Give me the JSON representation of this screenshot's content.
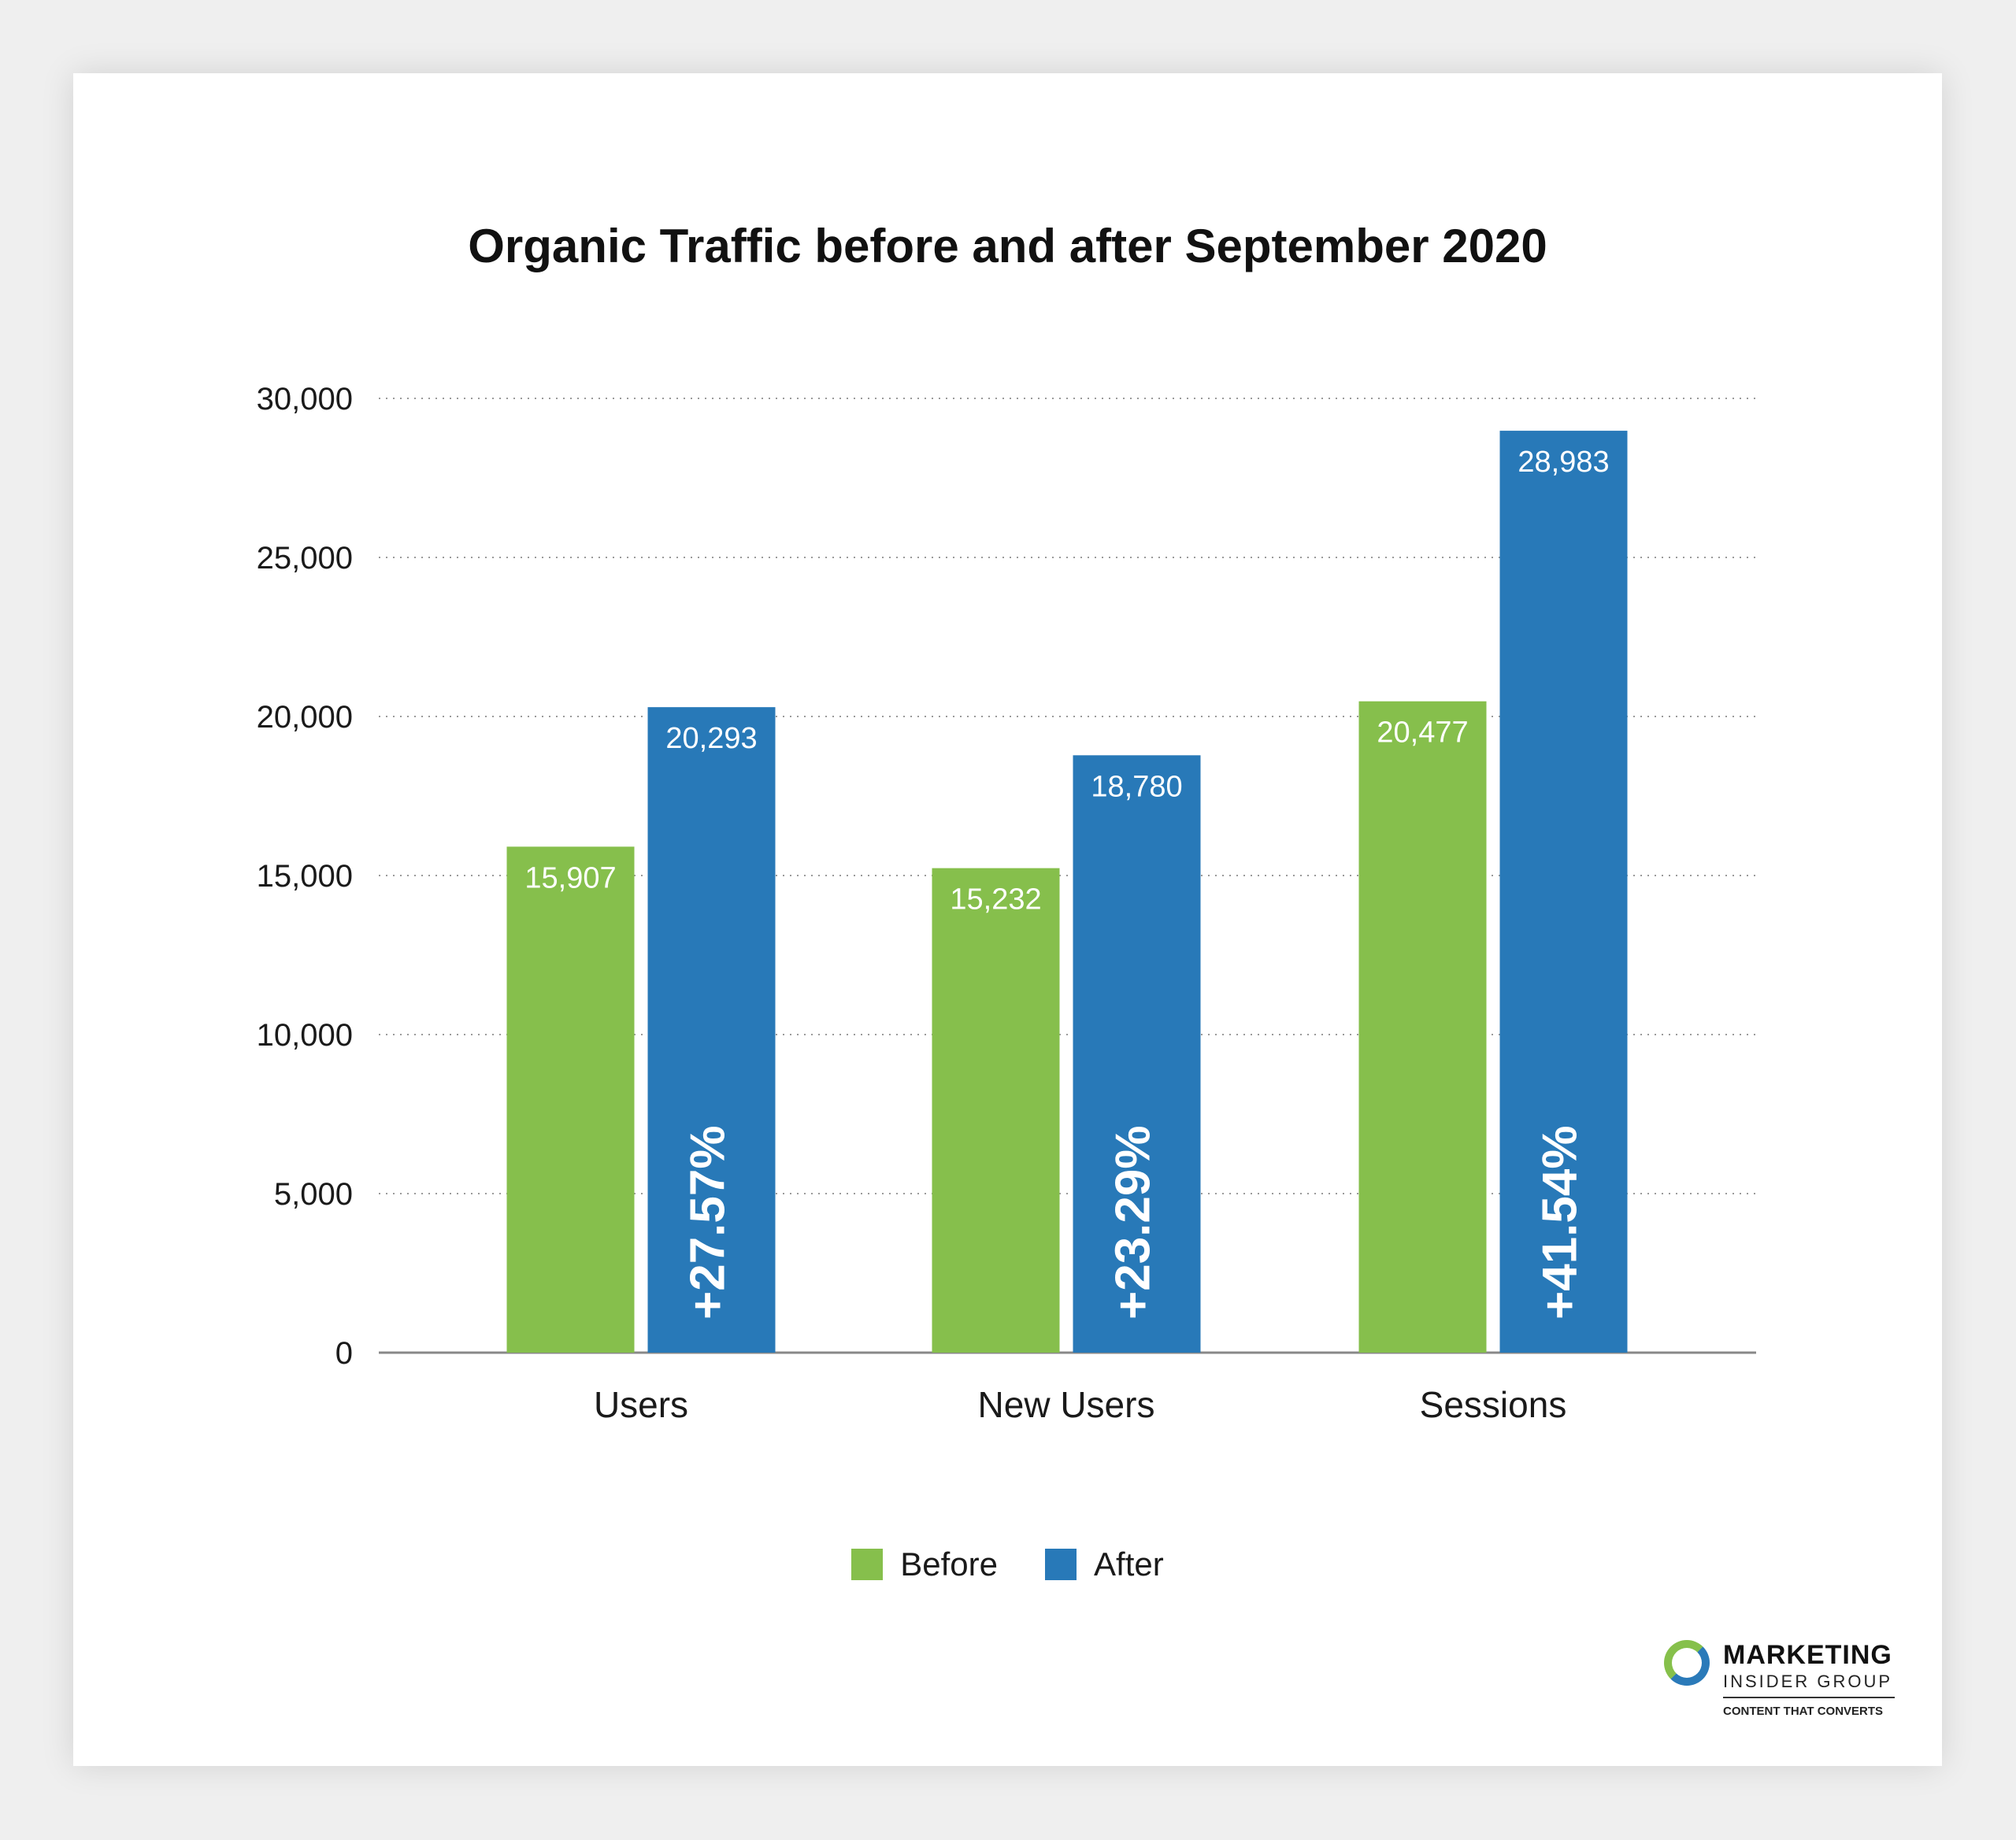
{
  "chart_data": {
    "type": "bar",
    "title": "Organic Traffic before and after September 2020",
    "categories": [
      "Users",
      "New Users",
      "Sessions"
    ],
    "series": [
      {
        "name": "Before",
        "color": "#86bf4c",
        "values": [
          15907,
          15232,
          20477
        ],
        "labels": [
          "15,907",
          "15,232",
          "20,477"
        ]
      },
      {
        "name": "After",
        "color": "#2879b8",
        "values": [
          20293,
          18780,
          28983
        ],
        "labels": [
          "20,293",
          "18,780",
          "28,983"
        ]
      }
    ],
    "change_labels": [
      "+27.57%",
      "+23.29%",
      "+41.54%"
    ],
    "yticks": [
      0,
      5000,
      10000,
      15000,
      20000,
      25000,
      30000
    ],
    "ytick_labels": [
      "0",
      "5,000",
      "10,000",
      "15,000",
      "20,000",
      "25,000",
      "30,000"
    ],
    "ylim": [
      0,
      30000
    ],
    "grid": true,
    "legend_position": "bottom-center"
  },
  "logo": {
    "line1": "MARKETING",
    "line2": "INSIDER GROUP",
    "line3": "CONTENT THAT CONVERTS"
  }
}
